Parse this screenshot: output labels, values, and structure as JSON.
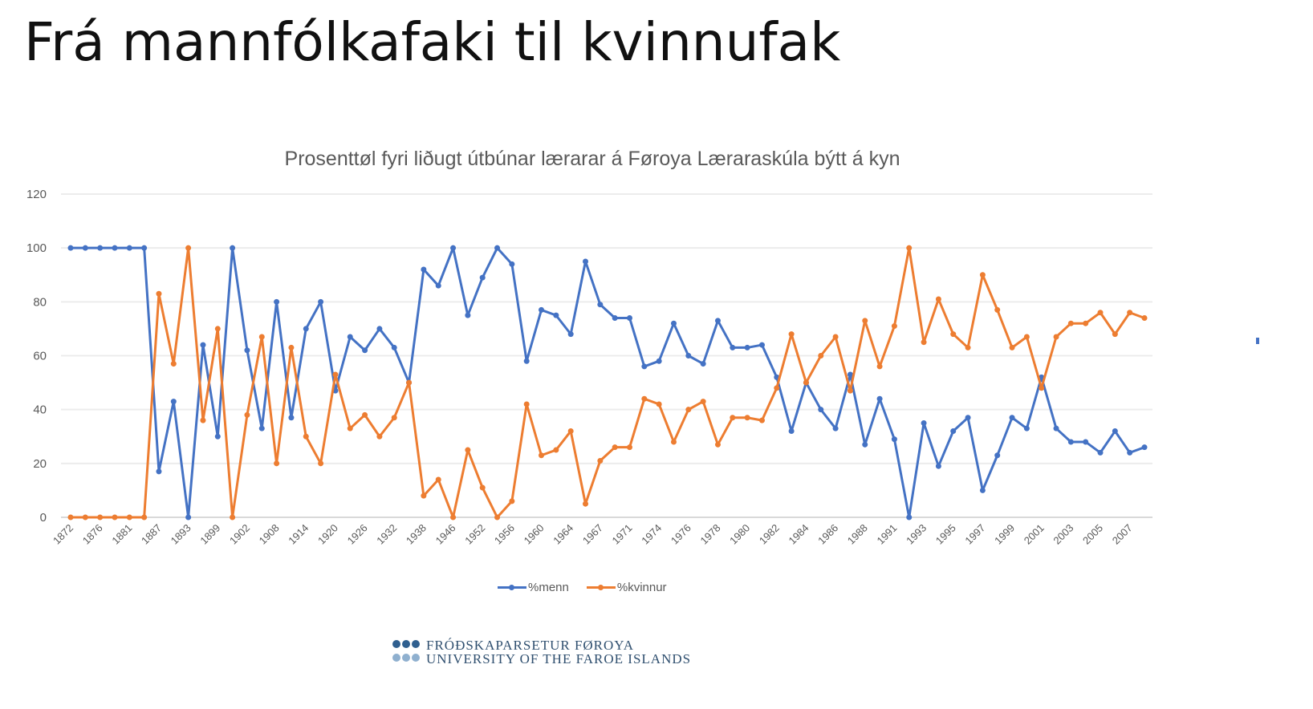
{
  "slide": {
    "title": "Frá mannfólkafaki til kvinnufak"
  },
  "logo": {
    "line1": "FRÓÐSKAPARSETUR FØROYA",
    "line2": "UNIVERSITY OF THE FAROE ISLANDS"
  },
  "chart_data": {
    "type": "line",
    "title": "Prosenttøl fyri liðugt útbúnar lærarar á Føroya Læraraskúla býtt á kyn",
    "xlabel": "",
    "ylabel": "",
    "ylim": [
      0,
      120
    ],
    "yticks": [
      0,
      20,
      40,
      60,
      80,
      100,
      120
    ],
    "grid": true,
    "legend_position": "bottom",
    "x_tick_every": 2,
    "x_tick_labels": [
      "1872",
      "1876",
      "1881",
      "1887",
      "1893",
      "1899",
      "1902",
      "1908",
      "1914",
      "1920",
      "1926",
      "1932",
      "1938",
      "1946",
      "1952",
      "1956",
      "1960",
      "1964",
      "1967",
      "1971",
      "1974",
      "1976",
      "1978",
      "1980",
      "1982",
      "1984",
      "1986",
      "1988",
      "1991",
      "1993",
      "1995",
      "1997",
      "1999",
      "2001",
      "2003",
      "2005",
      "2007"
    ],
    "colors": {
      "menn": "#4472c4",
      "kvinnur": "#ed7d31"
    },
    "series": [
      {
        "name": "%menn",
        "key": "menn",
        "values": [
          100,
          100,
          100,
          100,
          100,
          100,
          17,
          43,
          0,
          64,
          30,
          100,
          62,
          33,
          80,
          37,
          70,
          80,
          47,
          67,
          62,
          70,
          63,
          50,
          92,
          86,
          100,
          75,
          89,
          100,
          94,
          58,
          77,
          75,
          68,
          95,
          79,
          74,
          74,
          56,
          58,
          72,
          60,
          57,
          73,
          63,
          63,
          64,
          52,
          32,
          50,
          40,
          33,
          53,
          27,
          44,
          29,
          0,
          35,
          19,
          32,
          37,
          10,
          23,
          37,
          33,
          52,
          33,
          28,
          28,
          24,
          32,
          24,
          26
        ]
      },
      {
        "name": "%kvinnur",
        "key": "kvinnur",
        "values": [
          0,
          0,
          0,
          0,
          0,
          0,
          83,
          57,
          100,
          36,
          70,
          0,
          38,
          67,
          20,
          63,
          30,
          20,
          53,
          33,
          38,
          30,
          37,
          50,
          8,
          14,
          0,
          25,
          11,
          0,
          6,
          42,
          23,
          25,
          32,
          5,
          21,
          26,
          26,
          44,
          42,
          28,
          40,
          43,
          27,
          37,
          37,
          36,
          48,
          68,
          50,
          60,
          67,
          47,
          73,
          56,
          71,
          100,
          65,
          81,
          68,
          63,
          90,
          77,
          63,
          67,
          48,
          67,
          72,
          72,
          76,
          68,
          76,
          74
        ]
      }
    ]
  }
}
